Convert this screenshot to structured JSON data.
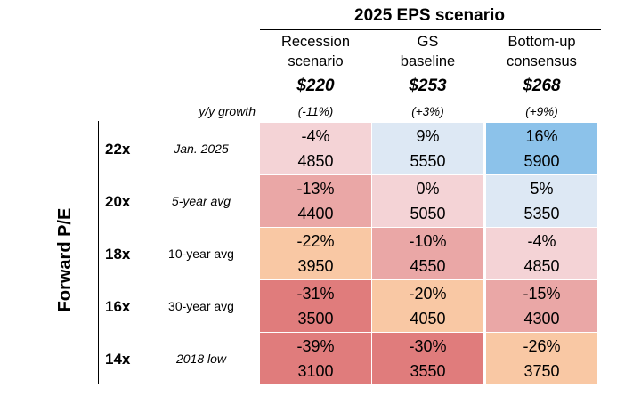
{
  "chart_data": {
    "type": "table",
    "title": "2025 EPS scenario",
    "row_axis_label": "Forward P/E",
    "growth_label": "y/y growth",
    "columns": [
      {
        "name_line1": "Recession",
        "name_line2": "scenario",
        "eps": "$220",
        "growth": "(-11%)"
      },
      {
        "name_line1": "GS",
        "name_line2": "baseline",
        "eps": "$253",
        "growth": "(+3%)"
      },
      {
        "name_line1": "Bottom-up",
        "name_line2": "consensus",
        "eps": "$268",
        "growth": "(+9%)"
      }
    ],
    "rows": [
      {
        "pe": "22x",
        "label": "Jan. 2025",
        "italic": true,
        "cells": [
          {
            "pct": "-4%",
            "level": "4850",
            "color": "#f4d3d6"
          },
          {
            "pct": "9%",
            "level": "5550",
            "color": "#dde8f4"
          },
          {
            "pct": "16%",
            "level": "5900",
            "color": "#8cc2ea"
          }
        ]
      },
      {
        "pe": "20x",
        "label": "5-year avg",
        "italic": true,
        "cells": [
          {
            "pct": "-13%",
            "level": "4400",
            "color": "#eaa7a6"
          },
          {
            "pct": "0%",
            "level": "5050",
            "color": "#f4d3d6"
          },
          {
            "pct": "5%",
            "level": "5350",
            "color": "#dde8f4"
          }
        ]
      },
      {
        "pe": "18x",
        "label": "10-year avg",
        "italic": false,
        "cells": [
          {
            "pct": "-22%",
            "level": "3950",
            "color": "#f9c8a4"
          },
          {
            "pct": "-10%",
            "level": "4550",
            "color": "#eaa7a6"
          },
          {
            "pct": "-4%",
            "level": "4850",
            "color": "#f4d3d6"
          }
        ]
      },
      {
        "pe": "16x",
        "label": "30-year avg",
        "italic": false,
        "cells": [
          {
            "pct": "-31%",
            "level": "3500",
            "color": "#e07c7c"
          },
          {
            "pct": "-20%",
            "level": "4050",
            "color": "#f9c8a4"
          },
          {
            "pct": "-15%",
            "level": "4300",
            "color": "#eaa7a6"
          }
        ]
      },
      {
        "pe": "14x",
        "label": "2018 low",
        "italic": true,
        "cells": [
          {
            "pct": "-39%",
            "level": "3100",
            "color": "#e07c7c"
          },
          {
            "pct": "-30%",
            "level": "3550",
            "color": "#e07c7c"
          },
          {
            "pct": "-26%",
            "level": "3750",
            "color": "#f9c8a4"
          }
        ]
      }
    ]
  }
}
